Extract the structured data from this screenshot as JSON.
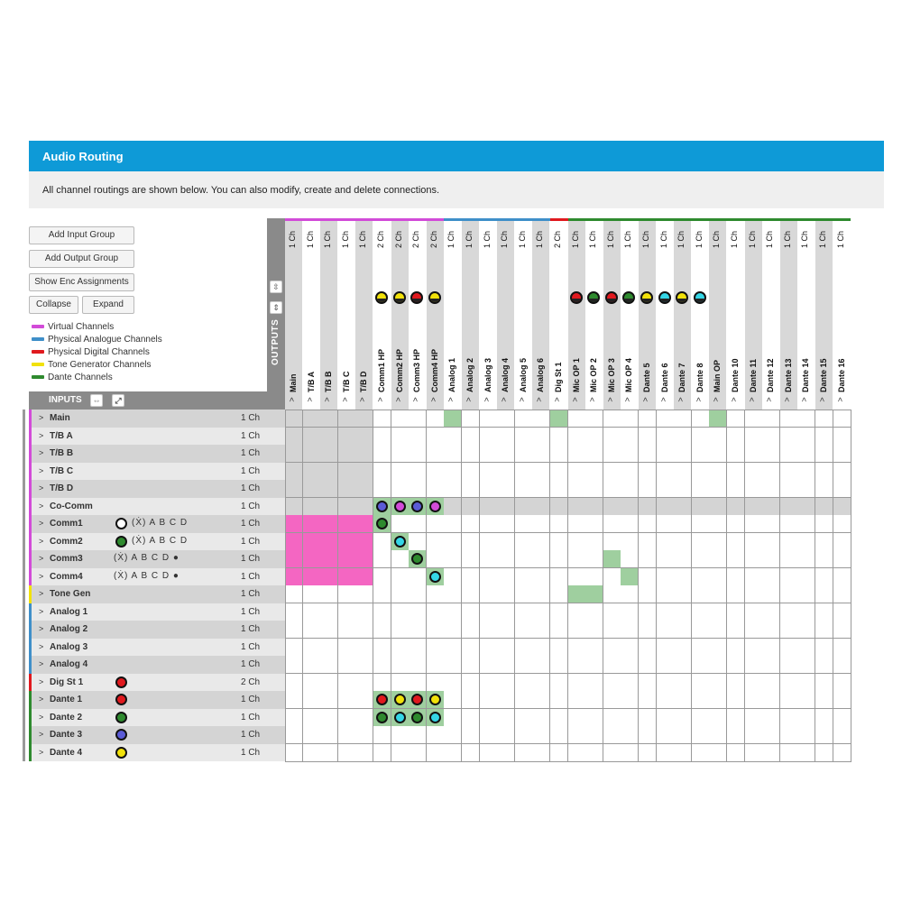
{
  "header": {
    "title": "Audio Routing"
  },
  "info": {
    "text": "All channel routings are shown below. You can also modify, create and delete connections."
  },
  "buttons": {
    "add_input_group": "Add Input Group",
    "add_output_group": "Add Output Group",
    "show_enc": "Show Enc Assignments",
    "collapse": "Collapse",
    "expand": "Expand"
  },
  "legend": [
    {
      "label": "Virtual Channels",
      "color": "#d24bd8"
    },
    {
      "label": "Physical Analogue Channels",
      "color": "#3f8fc9"
    },
    {
      "label": "Physical Digital Channels",
      "color": "#e0191e"
    },
    {
      "label": "Tone Generator Channels",
      "color": "#f1e10a"
    },
    {
      "label": "Dante Channels",
      "color": "#2e8a2e"
    }
  ],
  "outputs_label": "OUTPUTS",
  "inputs_label": "INPUTS",
  "chevron": ">",
  "colors": {
    "virtual": "#d24bd8",
    "analogue": "#3f8fc9",
    "digital": "#e0191e",
    "tone": "#f1e10a",
    "dante": "#2e8a2e",
    "routed": "#9fcf9f",
    "pink": "#f466c2",
    "disabled": "#d4d4d4"
  },
  "outputs": [
    {
      "name": "Main",
      "ch": "1 Ch",
      "group": "virtual"
    },
    {
      "name": "T/B A",
      "ch": "1 Ch",
      "group": "virtual"
    },
    {
      "name": "T/B B",
      "ch": "1 Ch",
      "group": "virtual"
    },
    {
      "name": "T/B C",
      "ch": "1 Ch",
      "group": "virtual"
    },
    {
      "name": "T/B D",
      "ch": "1 Ch",
      "group": "virtual"
    },
    {
      "name": "Comm1 HP",
      "ch": "2 Ch",
      "group": "virtual",
      "dot": "#f1e10a"
    },
    {
      "name": "Comm2 HP",
      "ch": "2 Ch",
      "group": "virtual",
      "dot": "#f1e10a"
    },
    {
      "name": "Comm3 HP",
      "ch": "2 Ch",
      "group": "virtual",
      "dot": "#e0191e"
    },
    {
      "name": "Comm4 HP",
      "ch": "2 Ch",
      "group": "virtual",
      "dot": "#f1e10a"
    },
    {
      "name": "Analog 1",
      "ch": "1 Ch",
      "group": "analogue"
    },
    {
      "name": "Analog 2",
      "ch": "1 Ch",
      "group": "analogue"
    },
    {
      "name": "Analog 3",
      "ch": "1 Ch",
      "group": "analogue"
    },
    {
      "name": "Analog 4",
      "ch": "1 Ch",
      "group": "analogue"
    },
    {
      "name": "Analog 5",
      "ch": "1 Ch",
      "group": "analogue"
    },
    {
      "name": "Analog 6",
      "ch": "1 Ch",
      "group": "analogue"
    },
    {
      "name": "Dig St 1",
      "ch": "2 Ch",
      "group": "digital"
    },
    {
      "name": "Mic OP 1",
      "ch": "1 Ch",
      "group": "dante",
      "dot": "#e0191e"
    },
    {
      "name": "Mic OP 2",
      "ch": "1 Ch",
      "group": "dante",
      "dot": "#2e8a2e"
    },
    {
      "name": "Mic OP 3",
      "ch": "1 Ch",
      "group": "dante",
      "dot": "#e0191e"
    },
    {
      "name": "Mic OP 4",
      "ch": "1 Ch",
      "group": "dante",
      "dot": "#2e8a2e"
    },
    {
      "name": "Dante 5",
      "ch": "1 Ch",
      "group": "dante",
      "dot": "#f1e10a"
    },
    {
      "name": "Dante 6",
      "ch": "1 Ch",
      "group": "dante",
      "dot": "#35d6e6"
    },
    {
      "name": "Dante 7",
      "ch": "1 Ch",
      "group": "dante",
      "dot": "#f1e10a"
    },
    {
      "name": "Dante 8",
      "ch": "1 Ch",
      "group": "dante",
      "dot": "#35d6e6"
    },
    {
      "name": "Main OP",
      "ch": "1 Ch",
      "group": "dante"
    },
    {
      "name": "Dante 10",
      "ch": "1 Ch",
      "group": "dante"
    },
    {
      "name": "Dante 11",
      "ch": "1 Ch",
      "group": "dante"
    },
    {
      "name": "Dante 12",
      "ch": "1 Ch",
      "group": "dante"
    },
    {
      "name": "Dante 13",
      "ch": "1 Ch",
      "group": "dante"
    },
    {
      "name": "Dante 14",
      "ch": "1 Ch",
      "group": "dante"
    },
    {
      "name": "Dante 15",
      "ch": "1 Ch",
      "group": "dante"
    },
    {
      "name": "Dante 16",
      "ch": "1 Ch",
      "group": "dante"
    }
  ],
  "inputs": [
    {
      "name": "Main",
      "ch": "1 Ch",
      "group": "virtual"
    },
    {
      "name": "T/B A",
      "ch": "1 Ch",
      "group": "virtual"
    },
    {
      "name": "T/B B",
      "ch": "1 Ch",
      "group": "virtual"
    },
    {
      "name": "T/B C",
      "ch": "1 Ch",
      "group": "virtual"
    },
    {
      "name": "T/B D",
      "ch": "1 Ch",
      "group": "virtual"
    },
    {
      "name": "Co-Comm",
      "ch": "1 Ch",
      "group": "virtual"
    },
    {
      "name": "Comm1",
      "ch": "1 Ch",
      "group": "virtual",
      "icon": "#ffffff",
      "extra": "(Ẋ) A B C D"
    },
    {
      "name": "Comm2",
      "ch": "1 Ch",
      "group": "virtual",
      "icon": "#2e8a2e",
      "extra": "(Ẋ) A B C D"
    },
    {
      "name": "Comm3",
      "ch": "1 Ch",
      "group": "virtual",
      "extra": "(Ẋ) A B C D ●"
    },
    {
      "name": "Comm4",
      "ch": "1 Ch",
      "group": "virtual",
      "extra": "(Ẋ) A B C D ●"
    },
    {
      "name": "Tone Gen",
      "ch": "1 Ch",
      "group": "tone"
    },
    {
      "name": "Analog 1",
      "ch": "1 Ch",
      "group": "analogue"
    },
    {
      "name": "Analog 2",
      "ch": "1 Ch",
      "group": "analogue"
    },
    {
      "name": "Analog 3",
      "ch": "1 Ch",
      "group": "analogue"
    },
    {
      "name": "Analog 4",
      "ch": "1 Ch",
      "group": "analogue"
    },
    {
      "name": "Dig St 1",
      "ch": "2 Ch",
      "group": "digital",
      "icon": "#e0191e"
    },
    {
      "name": "Dante 1",
      "ch": "1 Ch",
      "group": "dante",
      "icon": "#e0191e"
    },
    {
      "name": "Dante 2",
      "ch": "1 Ch",
      "group": "dante",
      "icon": "#2e8a2e"
    },
    {
      "name": "Dante 3",
      "ch": "1 Ch",
      "group": "dante",
      "icon": "#5b5bd6"
    },
    {
      "name": "Dante 4",
      "ch": "1 Ch",
      "group": "dante",
      "icon": "#f1e10a"
    }
  ],
  "routes": {
    "green": [
      [
        0,
        9
      ],
      [
        0,
        15
      ],
      [
        0,
        24
      ],
      [
        8,
        18
      ],
      [
        9,
        19
      ],
      [
        10,
        16
      ],
      [
        10,
        17
      ]
    ],
    "pink_rows": [
      6,
      7,
      8,
      9
    ],
    "pink_cols": [
      0,
      1,
      2,
      3,
      4
    ],
    "dots": [
      [
        5,
        5,
        "#5b5bd6"
      ],
      [
        5,
        6,
        "#d24bd8"
      ],
      [
        5,
        7,
        "#5b5bd6"
      ],
      [
        5,
        8,
        "#d24bd8"
      ],
      [
        6,
        5,
        "#2e8a2e"
      ],
      [
        7,
        6,
        "#35d6e6"
      ],
      [
        8,
        7,
        "#2e8a2e"
      ],
      [
        9,
        8,
        "#35d6e6"
      ],
      [
        16,
        5,
        "#e0191e"
      ],
      [
        16,
        6,
        "#f1e10a"
      ],
      [
        16,
        7,
        "#e0191e"
      ],
      [
        16,
        8,
        "#f1e10a"
      ],
      [
        17,
        5,
        "#2e8a2e"
      ],
      [
        17,
        6,
        "#35d6e6"
      ],
      [
        17,
        7,
        "#2e8a2e"
      ],
      [
        17,
        8,
        "#35d6e6"
      ]
    ]
  }
}
